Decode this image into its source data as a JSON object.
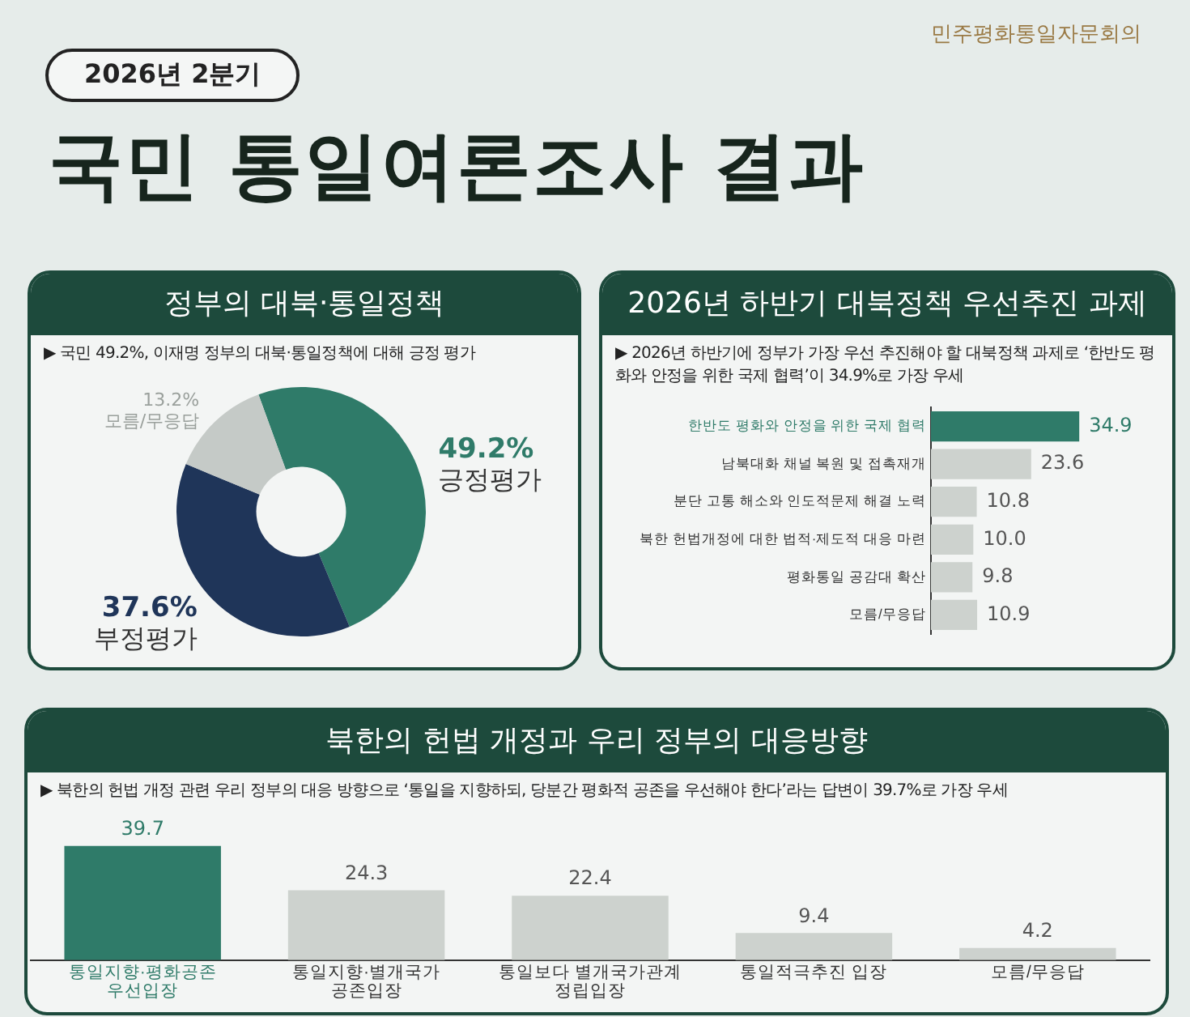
{
  "chart_data": [
    {
      "type": "donut",
      "title": "정부의 대북·통일정책",
      "subtitle": "▶ 국민 49.2%, 이재명 정부의 대북·통일정책에 대해 긍정 평가",
      "annotations": [
        "2026년 2분기",
        "국민 통일여론조사 결과",
        "민주평화통일자문회의"
      ],
      "categories": [
        "긍정평가",
        "부정평가",
        "모름/무응답"
      ],
      "values": [
        49.2,
        37.6,
        13.2
      ],
      "value_labels": [
        "49.2%",
        "37.6%",
        "13.2%"
      ],
      "colors": [
        "#2f7b69",
        "#1f3559",
        "#c5cac7"
      ],
      "legend": false
    },
    {
      "type": "bar",
      "orientation": "horizontal",
      "title": "2026년 하반기 대북정책 우선추진 과제",
      "subtitle": "▶ 2026년 하반기에 정부가 가장 우선 추진해야 할 대북정책 과제로 ‘한반도 평화와 안정을 위한 국제 협력’이 34.9%로 가장 우세",
      "categories": [
        "한반도 평화와 안정을 위한 국제 협력",
        "남북대화 채널 복원 및 접촉재개",
        "분단 고통 해소와 인도적문제 해결 노력",
        "북한 헌법개정에 대한 법적·제도적 대응 마련",
        "평화통일 공감대 확산",
        "모름/무응답"
      ],
      "values": [
        34.9,
        23.6,
        10.8,
        10.0,
        9.8,
        10.9
      ],
      "value_labels": [
        "34.9",
        "23.6",
        "10.8",
        "10.0",
        "9.8",
        "10.9"
      ],
      "colors": [
        "#2f7b69",
        "#cdd2ce",
        "#cdd2ce",
        "#cdd2ce",
        "#cdd2ce",
        "#cdd2ce"
      ],
      "legend": false
    },
    {
      "type": "bar",
      "title": "북한의 헌법 개정과 우리 정부의 대응방향",
      "subtitle": "▶ 북한의 헌법 개정 관련 우리 정부의 대응 방향으로 ‘통일을 지향하되, 당분간 평화적 공존을 우선해야 한다’라는 답변이 39.7%로 가장 우세",
      "categories": [
        "통일지향·평화공존 우선입장",
        "통일지향·별개국가 공존입장",
        "통일보다 별개국가관계 정립입장",
        "통일적극추진 입장",
        "모름/무응답"
      ],
      "values": [
        39.7,
        24.3,
        22.4,
        9.4,
        4.2
      ],
      "value_labels": [
        "39.7",
        "24.3",
        "22.4",
        "9.4",
        "4.2"
      ],
      "colors": [
        "#2f7b69",
        "#cdd2ce",
        "#cdd2ce",
        "#cdd2ce",
        "#cdd2ce"
      ],
      "legend": false
    }
  ]
}
